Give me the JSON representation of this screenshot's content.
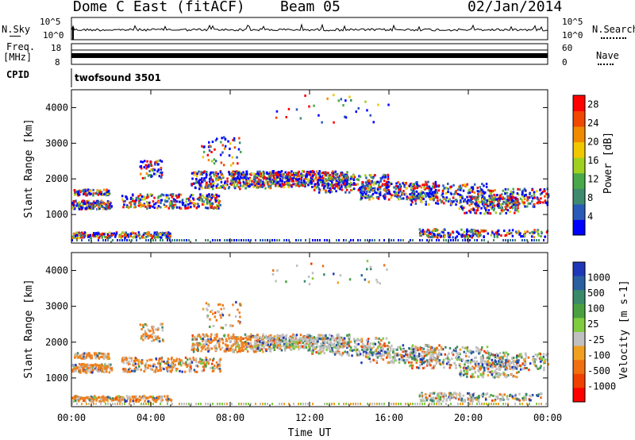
{
  "header": {
    "station": "Dome C East (fitACF)",
    "beam": "Beam 05",
    "date": "02/Jan/2014"
  },
  "panels": {
    "nsky_label": "N.Sky",
    "nsearch_label": "N.Search",
    "freq_label_1": "Freq.",
    "freq_label_2": "[MHz]",
    "nave_label": "Nave",
    "cpid_label": "CPID",
    "cpid_value": "twofsound 3501",
    "noise_left_ticks": [
      "10^5",
      "10^0"
    ],
    "noise_right_ticks": [
      "10^5",
      "10^0"
    ],
    "freq_ticks": [
      "18",
      "8"
    ],
    "nave_ticks": [
      "60",
      "0"
    ]
  },
  "colors": {
    "power_scale": [
      "#0000ff",
      "#2a5ab8",
      "#3f8a6e",
      "#48a84a",
      "#a0d020",
      "#f0c800",
      "#f08a00",
      "#f04800",
      "#ff0000"
    ],
    "velocity_scale": [
      "#2038b8",
      "#2a60a0",
      "#3a8a6a",
      "#4aa040",
      "#80cc40",
      "#c0c0c0",
      "#f0a020",
      "#f07010",
      "#f04000",
      "#ff0000"
    ]
  },
  "chart_data": [
    {
      "type": "heatmap",
      "title": "",
      "xlabel": "",
      "ylabel": "Slant Range [km]",
      "colorbar_label": "Power [dB]",
      "x_ticks": [
        "00:00",
        "04:00",
        "08:00",
        "12:00",
        "16:00",
        "20:00",
        "00:00"
      ],
      "y_ticks": [
        1000,
        2000,
        3000,
        4000
      ],
      "ylim": [
        200,
        4500
      ],
      "xlim_hours": [
        0,
        24
      ],
      "colorbar_ticks": [
        4,
        8,
        12,
        16,
        20,
        24,
        28
      ],
      "colorbar_range": [
        0,
        30
      ]
    },
    {
      "type": "heatmap",
      "title": "",
      "xlabel": "Time UT",
      "ylabel": "Slant Range [km]",
      "colorbar_label": "Velocity [m s-1]",
      "x_ticks": [
        "00:00",
        "04:00",
        "08:00",
        "12:00",
        "16:00",
        "20:00",
        "00:00"
      ],
      "y_ticks": [
        1000,
        2000,
        3000,
        4000
      ],
      "ylim": [
        200,
        4500
      ],
      "xlim_hours": [
        0,
        24
      ],
      "colorbar_ticks": [
        1000,
        500,
        100,
        25,
        -25,
        -100,
        -500,
        -1000
      ]
    }
  ]
}
